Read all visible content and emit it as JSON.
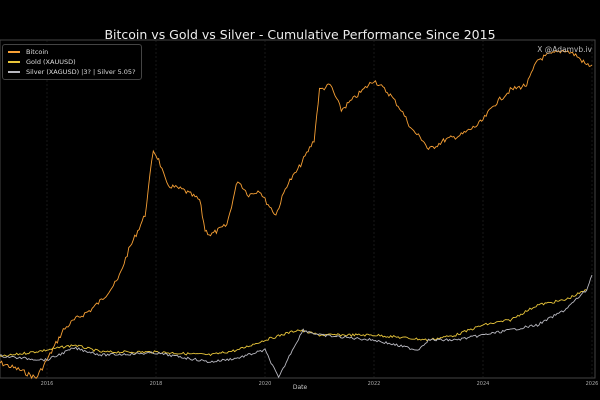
{
  "chart_data": {
    "type": "line",
    "title": "Bitcoin vs Gold vs Silver - Cumulative Performance Since 2015",
    "xlabel": "Date",
    "ylabel": "",
    "xlim": [
      2015,
      2026
    ],
    "ylim": [
      0,
      338
    ],
    "xticks": [
      "2016",
      "2018",
      "2020",
      "2022",
      "2024",
      "2026"
    ],
    "xtick_values": [
      2016,
      2018,
      2020,
      2022,
      2024,
      2026
    ],
    "grid": true,
    "legend_placement": "top-left",
    "watermark": "X @Adamvb.iv",
    "series": [
      {
        "name": "Bitcoin",
        "color": "#f7a035",
        "x": [
          2015,
          2015.5,
          2015.8,
          2016,
          2016.3,
          2016.5,
          2016.8,
          2017,
          2017.3,
          2017.5,
          2017.8,
          2017.95,
          2018.05,
          2018.2,
          2018.5,
          2018.8,
          2018.9,
          2019,
          2019.3,
          2019.5,
          2019.7,
          2019.9,
          2020,
          2020.2,
          2020.4,
          2020.6,
          2020.9,
          2021,
          2021.2,
          2021.4,
          2021.7,
          2021.9,
          2022,
          2022.3,
          2022.5,
          2022.7,
          2022.9,
          2023,
          2023.3,
          2023.6,
          2023.9,
          2024,
          2024.2,
          2024.5,
          2024.8,
          2025,
          2025.2,
          2025.5,
          2025.7,
          2025.9,
          2026
        ],
        "y": [
          18,
          8,
          0,
          18,
          48,
          58,
          68,
          78,
          98,
          128,
          163,
          228,
          218,
          193,
          188,
          178,
          148,
          143,
          153,
          198,
          183,
          188,
          178,
          163,
          193,
          208,
          238,
          288,
          293,
          268,
          283,
          293,
          298,
          283,
          268,
          248,
          238,
          228,
          238,
          243,
          253,
          258,
          273,
          288,
          293,
          318,
          323,
          328,
          323,
          313,
          313
        ]
      },
      {
        "name": "Gold (XAUUSD)",
        "color": "#e8c53a",
        "x": [
          2015,
          2016,
          2016.5,
          2017,
          2018,
          2019,
          2019.5,
          2020,
          2020.6,
          2021,
          2022,
          2023,
          2023.5,
          2024,
          2024.5,
          2025,
          2025.5,
          2025.9
        ],
        "y": [
          20,
          28,
          33,
          26,
          26,
          23,
          28,
          38,
          48,
          43,
          43,
          38,
          43,
          53,
          58,
          73,
          78,
          88
        ]
      },
      {
        "name": "Silver (XAGUSD)",
        "label": "Silver (XAGUSD) |3?  |  Silver 5.05?",
        "color": "#b8b8c0",
        "x": [
          2015,
          2015.5,
          2016,
          2016.5,
          2017,
          2018,
          2019,
          2019.5,
          2020,
          2020.25,
          2020.5,
          2020.7,
          2021,
          2022,
          2022.8,
          2023,
          2023.5,
          2024,
          2024.5,
          2025,
          2025.5,
          2025.9,
          2026
        ],
        "y": [
          23,
          20,
          18,
          30,
          23,
          25,
          16,
          20,
          28,
          0,
          28,
          48,
          43,
          38,
          28,
          38,
          38,
          43,
          48,
          53,
          68,
          88,
          103
        ]
      }
    ]
  }
}
